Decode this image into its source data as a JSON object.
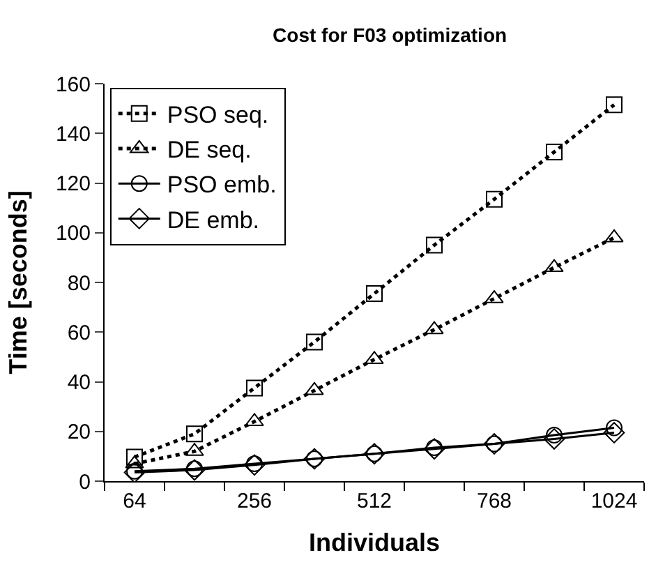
{
  "chart_data": {
    "type": "line",
    "title": "Cost for F03 optimization",
    "xlabel": "Individuals",
    "ylabel": "Time [seconds]",
    "categories": [
      "64",
      null,
      "256",
      null,
      "512",
      null,
      "768",
      null,
      "1024"
    ],
    "ylim": [
      0,
      160
    ],
    "yticks": [
      0,
      20,
      40,
      60,
      80,
      100,
      120,
      140,
      160
    ],
    "legend": "top left",
    "series": [
      {
        "name": "PSO seq.",
        "color": "#000000",
        "marker": "square",
        "line_style": "dotted",
        "values": [
          9.7,
          19,
          37.5,
          56,
          75.5,
          95,
          113.5,
          132.5,
          151.5
        ]
      },
      {
        "name": "DE seq.",
        "color": "#000000",
        "marker": "triangle",
        "line_style": "dotted",
        "values": [
          7,
          12,
          24,
          36.5,
          49,
          61,
          73.5,
          86,
          98
        ]
      },
      {
        "name": "PSO emb.",
        "color": "#000000",
        "marker": "circle",
        "line_style": "solid",
        "values": [
          4,
          5,
          7,
          9,
          11,
          13.5,
          15,
          18.5,
          21.5
        ]
      },
      {
        "name": "DE emb.",
        "color": "#000000",
        "marker": "diamond",
        "line_style": "solid",
        "values": [
          3.5,
          4.5,
          6.5,
          9,
          11,
          13,
          15,
          17,
          19.5
        ]
      }
    ]
  }
}
